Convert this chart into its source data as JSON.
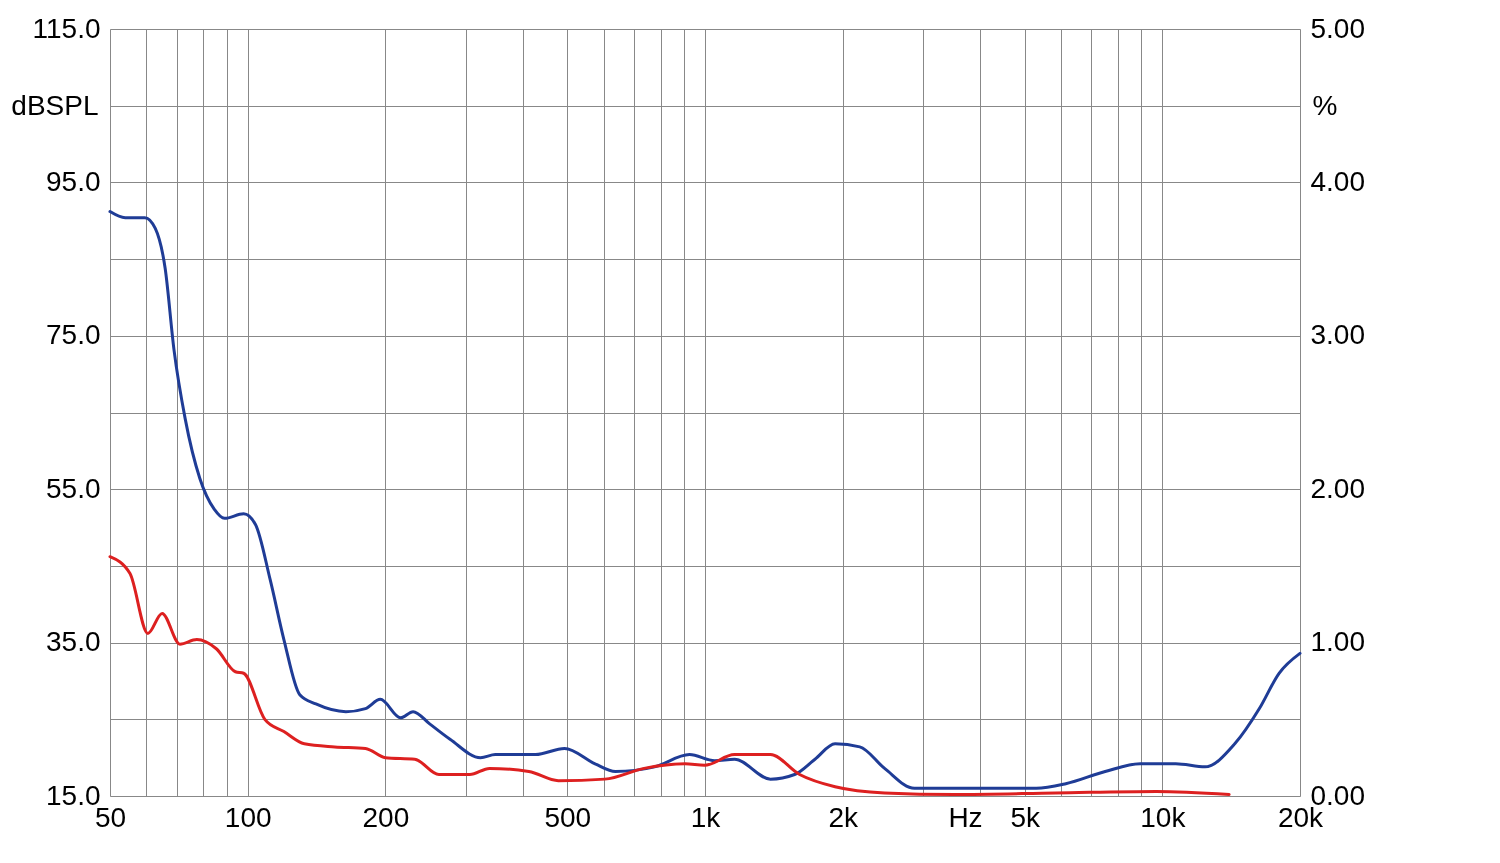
{
  "chart_data": {
    "type": "line",
    "xlabel": "Hz",
    "ylabel": "dBSPL",
    "y2label": "%",
    "log": "x",
    "xlim": [
      50,
      20000
    ],
    "xticks": [
      50,
      {
        "value": 60,
        "label": null
      },
      {
        "value": 70,
        "label": null
      },
      {
        "value": 80,
        "label": null
      },
      {
        "value": 90,
        "label": null
      },
      100,
      200,
      {
        "value": 300,
        "label": null
      },
      {
        "value": 400,
        "label": null
      },
      500,
      {
        "value": 600,
        "label": null
      },
      {
        "value": 700,
        "label": null
      },
      {
        "value": 800,
        "label": null
      },
      {
        "value": 900,
        "label": null
      },
      {
        "value": 1000,
        "label": "1k"
      },
      {
        "value": 2000,
        "label": "2k"
      },
      {
        "value": 3000,
        "label": null
      },
      {
        "value": 4000,
        "label": null
      },
      {
        "value": 5000,
        "label": "5k"
      },
      {
        "value": 6000,
        "label": null
      },
      {
        "value": 7000,
        "label": null
      },
      {
        "value": 8000,
        "label": null
      },
      {
        "value": 9000,
        "label": null
      },
      {
        "value": 10000,
        "label": "10k"
      },
      {
        "value": 20000,
        "label": "20k"
      }
    ],
    "ylim": [
      15,
      115
    ],
    "yticks": [
      {
        "value": 15,
        "label": "15.0"
      },
      {
        "value": 25,
        "label": null
      },
      {
        "value": 35,
        "label": "35.0"
      },
      {
        "value": 45,
        "label": null
      },
      {
        "value": 55,
        "label": "55.0"
      },
      {
        "value": 65,
        "label": null
      },
      {
        "value": 75,
        "label": "75.0"
      },
      {
        "value": 85,
        "label": null
      },
      {
        "value": 95,
        "label": "95.0"
      },
      {
        "value": 105,
        "label": null
      },
      {
        "value": 115,
        "label": "115.0"
      }
    ],
    "y2lim": [
      0,
      5
    ],
    "y2ticks": [
      {
        "value": 0,
        "label": "0.00"
      },
      {
        "value": 1,
        "label": "1.00"
      },
      {
        "value": 2,
        "label": "2.00"
      },
      {
        "value": 3,
        "label": "3.00"
      },
      {
        "value": 4,
        "label": "4.00"
      },
      {
        "value": 5,
        "label": "5.00"
      }
    ],
    "grid": true,
    "marker": "none",
    "line_style": "solid",
    "series": [
      {
        "color": "#1f3c96",
        "axis": "y2",
        "x": [
          50,
          54,
          59.6,
          62.8,
          66,
          69,
          73,
          78.6,
          84.5,
          89,
          98,
          104,
          112,
          120,
          130,
          141,
          164,
          181,
          195,
          216,
          230,
          250,
          277,
          323,
          348,
          426,
          493,
          575,
          637,
          776,
          925,
          1050,
          1160,
          1390,
          1570,
          1740,
          1925,
          2180,
          2470,
          2870,
          3340,
          5300,
          6150,
          7500,
          8950,
          10700,
          12400,
          14400,
          16300,
          18000,
          20000
        ],
        "values": [
          3.81,
          3.77,
          3.77,
          3.7,
          3.44,
          2.91,
          2.46,
          2.07,
          1.87,
          1.81,
          1.84,
          1.77,
          1.41,
          1.02,
          0.66,
          0.6,
          0.55,
          0.57,
          0.63,
          0.51,
          0.55,
          0.47,
          0.37,
          0.25,
          0.27,
          0.27,
          0.31,
          0.21,
          0.16,
          0.19,
          0.27,
          0.23,
          0.24,
          0.11,
          0.14,
          0.24,
          0.34,
          0.32,
          0.18,
          0.05,
          0.05,
          0.05,
          0.08,
          0.16,
          0.21,
          0.21,
          0.19,
          0.34,
          0.57,
          0.8,
          0.93
        ]
      },
      {
        "color": "#dd2020",
        "axis": "y2",
        "x": [
          50,
          55.3,
          60.5,
          65,
          71.1,
          77.4,
          85.4,
          94,
          98,
          109,
          120,
          133,
          155,
          181,
          200,
          232,
          262,
          306,
          338,
          412,
          478,
          604,
          736,
          904,
          998,
          1160,
          1390,
          1610,
          1925,
          2470,
          3510,
          5850,
          9700,
          14000
        ],
        "values": [
          1.56,
          1.45,
          1.06,
          1.19,
          0.99,
          1.02,
          0.96,
          0.81,
          0.8,
          0.5,
          0.42,
          0.34,
          0.32,
          0.31,
          0.25,
          0.24,
          0.14,
          0.14,
          0.18,
          0.16,
          0.1,
          0.11,
          0.18,
          0.21,
          0.2,
          0.27,
          0.27,
          0.14,
          0.06,
          0.02,
          0.01,
          0.02,
          0.03,
          0.01
        ]
      }
    ]
  }
}
